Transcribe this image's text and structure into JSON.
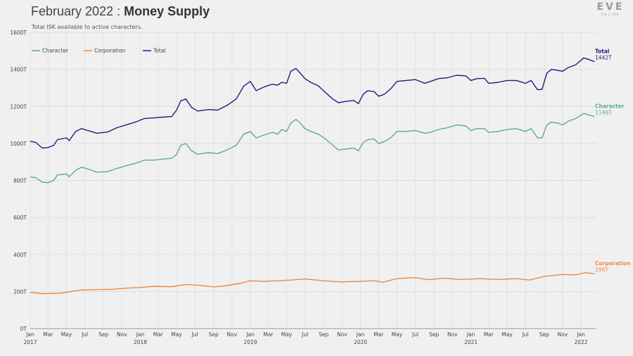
{
  "header": {
    "title_prefix": "February 2022 : ",
    "title_strong": "Money Supply",
    "subtitle": "Total ISK available to active characters.",
    "logo_text": "EVE",
    "logo_sub": "ONLINE"
  },
  "chart_data": {
    "type": "line",
    "ylim": [
      0,
      1600
    ],
    "y_ticks": [
      0,
      200,
      400,
      600,
      800,
      1000,
      1200,
      1400,
      1600
    ],
    "y_tick_labels": [
      "0T",
      "200T",
      "400T",
      "600T",
      "800T",
      "1000T",
      "1200T",
      "1400T",
      "1600T"
    ],
    "x_range": [
      "2017-01-01",
      "2022-02-28"
    ],
    "x_month_labels": [
      "Jan",
      "Mar",
      "May",
      "Jul",
      "Sep",
      "Nov",
      "Jan",
      "Mar",
      "May",
      "Jul",
      "Sep",
      "Nov",
      "Jan",
      "Mar",
      "May",
      "Jul",
      "Sep",
      "Nov",
      "Jan",
      "Mar",
      "May",
      "Jul",
      "Sep",
      "Nov",
      "Jan",
      "Mar",
      "May",
      "Jul",
      "Sep",
      "Nov",
      "Jan"
    ],
    "x_year_labels": [
      "2017",
      "2018",
      "2019",
      "2020",
      "2021",
      "2022"
    ],
    "legend": {
      "placement": "top-left"
    },
    "grid": true,
    "series": [
      {
        "name": "Character",
        "color": "#5fa898",
        "end_label": "Character",
        "end_value_label": "1146T",
        "points": [
          [
            "2017-01-01",
            820
          ],
          [
            "2017-01-20",
            815
          ],
          [
            "2017-02-10",
            790
          ],
          [
            "2017-03-01",
            788
          ],
          [
            "2017-03-20",
            800
          ],
          [
            "2017-04-01",
            830
          ],
          [
            "2017-05-01",
            835
          ],
          [
            "2017-05-10",
            820
          ],
          [
            "2017-06-01",
            855
          ],
          [
            "2017-06-20",
            872
          ],
          [
            "2017-07-15",
            860
          ],
          [
            "2017-08-10",
            845
          ],
          [
            "2017-09-15",
            848
          ],
          [
            "2017-10-15",
            865
          ],
          [
            "2017-11-15",
            880
          ],
          [
            "2017-12-15",
            892
          ],
          [
            "2018-01-15",
            910
          ],
          [
            "2018-02-15",
            910
          ],
          [
            "2018-03-15",
            915
          ],
          [
            "2018-04-15",
            920
          ],
          [
            "2018-05-01",
            940
          ],
          [
            "2018-05-15",
            990
          ],
          [
            "2018-06-01",
            1000
          ],
          [
            "2018-06-20",
            960
          ],
          [
            "2018-07-10",
            942
          ],
          [
            "2018-08-15",
            950
          ],
          [
            "2018-09-15",
            945
          ],
          [
            "2018-10-15",
            965
          ],
          [
            "2018-11-15",
            990
          ],
          [
            "2018-12-10",
            1050
          ],
          [
            "2019-01-01",
            1065
          ],
          [
            "2019-01-20",
            1030
          ],
          [
            "2019-02-15",
            1045
          ],
          [
            "2019-03-15",
            1060
          ],
          [
            "2019-04-01",
            1050
          ],
          [
            "2019-04-15",
            1075
          ],
          [
            "2019-05-01",
            1065
          ],
          [
            "2019-05-15",
            1110
          ],
          [
            "2019-06-01",
            1130
          ],
          [
            "2019-06-15",
            1110
          ],
          [
            "2019-07-01",
            1080
          ],
          [
            "2019-07-20",
            1065
          ],
          [
            "2019-08-15",
            1050
          ],
          [
            "2019-09-10",
            1020
          ],
          [
            "2019-10-01",
            990
          ],
          [
            "2019-10-20",
            965
          ],
          [
            "2019-11-15",
            970
          ],
          [
            "2019-12-10",
            975
          ],
          [
            "2019-12-25",
            960
          ],
          [
            "2020-01-10",
            1005
          ],
          [
            "2020-01-25",
            1020
          ],
          [
            "2020-02-15",
            1025
          ],
          [
            "2020-03-01",
            1000
          ],
          [
            "2020-03-20",
            1010
          ],
          [
            "2020-04-10",
            1030
          ],
          [
            "2020-05-01",
            1065
          ],
          [
            "2020-06-01",
            1065
          ],
          [
            "2020-07-01",
            1070
          ],
          [
            "2020-08-01",
            1055
          ],
          [
            "2020-08-20",
            1060
          ],
          [
            "2020-09-15",
            1075
          ],
          [
            "2020-10-15",
            1085
          ],
          [
            "2020-11-15",
            1100
          ],
          [
            "2020-12-15",
            1095
          ],
          [
            "2021-01-01",
            1070
          ],
          [
            "2021-01-20",
            1080
          ],
          [
            "2021-02-15",
            1080
          ],
          [
            "2021-03-01",
            1060
          ],
          [
            "2021-04-01",
            1065
          ],
          [
            "2021-05-01",
            1075
          ],
          [
            "2021-06-01",
            1080
          ],
          [
            "2021-07-01",
            1065
          ],
          [
            "2021-07-20",
            1080
          ],
          [
            "2021-08-10",
            1030
          ],
          [
            "2021-08-25",
            1030
          ],
          [
            "2021-09-10",
            1100
          ],
          [
            "2021-09-25",
            1115
          ],
          [
            "2021-10-15",
            1110
          ],
          [
            "2021-11-01",
            1100
          ],
          [
            "2021-11-20",
            1120
          ],
          [
            "2021-12-15",
            1135
          ],
          [
            "2022-01-10",
            1162
          ],
          [
            "2022-01-25",
            1155
          ],
          [
            "2022-02-15",
            1146
          ]
        ]
      },
      {
        "name": "Corporation",
        "color": "#f08a3c",
        "end_label": "Corporation",
        "end_value_label": "296T",
        "points": [
          [
            "2017-01-01",
            195
          ],
          [
            "2017-02-15",
            188
          ],
          [
            "2017-03-15",
            190
          ],
          [
            "2017-04-15",
            192
          ],
          [
            "2017-05-15",
            200
          ],
          [
            "2017-06-15",
            208
          ],
          [
            "2017-08-01",
            210
          ],
          [
            "2017-10-01",
            212
          ],
          [
            "2017-11-15",
            218
          ],
          [
            "2018-01-01",
            222
          ],
          [
            "2018-02-15",
            228
          ],
          [
            "2018-04-15",
            226
          ],
          [
            "2018-06-01",
            238
          ],
          [
            "2018-07-15",
            234
          ],
          [
            "2018-09-01",
            225
          ],
          [
            "2018-10-15",
            232
          ],
          [
            "2018-12-01",
            245
          ],
          [
            "2019-01-01",
            258
          ],
          [
            "2019-02-15",
            255
          ],
          [
            "2019-04-01",
            258
          ],
          [
            "2019-05-15",
            262
          ],
          [
            "2019-07-01",
            268
          ],
          [
            "2019-09-01",
            258
          ],
          [
            "2019-11-01",
            252
          ],
          [
            "2020-01-01",
            255
          ],
          [
            "2020-02-15",
            258
          ],
          [
            "2020-03-15",
            250
          ],
          [
            "2020-05-01",
            270
          ],
          [
            "2020-07-01",
            275
          ],
          [
            "2020-08-15",
            264
          ],
          [
            "2020-10-01",
            272
          ],
          [
            "2020-12-01",
            265
          ],
          [
            "2021-02-01",
            270
          ],
          [
            "2021-04-01",
            265
          ],
          [
            "2021-06-01",
            270
          ],
          [
            "2021-07-15",
            262
          ],
          [
            "2021-09-01",
            282
          ],
          [
            "2021-11-01",
            292
          ],
          [
            "2021-12-15",
            290
          ],
          [
            "2022-01-15",
            302
          ],
          [
            "2022-02-15",
            296
          ]
        ]
      },
      {
        "name": "Total",
        "color": "#1f1d80",
        "end_label": "Total",
        "end_value_label": "1442T",
        "points": [
          [
            "2017-01-01",
            1012
          ],
          [
            "2017-01-20",
            1005
          ],
          [
            "2017-02-10",
            975
          ],
          [
            "2017-03-01",
            978
          ],
          [
            "2017-03-20",
            990
          ],
          [
            "2017-04-01",
            1020
          ],
          [
            "2017-05-01",
            1030
          ],
          [
            "2017-05-10",
            1015
          ],
          [
            "2017-06-01",
            1065
          ],
          [
            "2017-06-20",
            1080
          ],
          [
            "2017-07-15",
            1068
          ],
          [
            "2017-08-10",
            1055
          ],
          [
            "2017-09-15",
            1062
          ],
          [
            "2017-10-15",
            1085
          ],
          [
            "2017-11-15",
            1100
          ],
          [
            "2017-12-15",
            1115
          ],
          [
            "2018-01-15",
            1135
          ],
          [
            "2018-02-15",
            1138
          ],
          [
            "2018-03-15",
            1142
          ],
          [
            "2018-04-15",
            1145
          ],
          [
            "2018-05-01",
            1180
          ],
          [
            "2018-05-15",
            1230
          ],
          [
            "2018-06-01",
            1240
          ],
          [
            "2018-06-20",
            1195
          ],
          [
            "2018-07-10",
            1175
          ],
          [
            "2018-08-15",
            1183
          ],
          [
            "2018-09-15",
            1180
          ],
          [
            "2018-10-15",
            1205
          ],
          [
            "2018-11-15",
            1240
          ],
          [
            "2018-12-10",
            1310
          ],
          [
            "2019-01-01",
            1335
          ],
          [
            "2019-01-20",
            1285
          ],
          [
            "2019-02-15",
            1305
          ],
          [
            "2019-03-15",
            1320
          ],
          [
            "2019-04-01",
            1315
          ],
          [
            "2019-04-15",
            1330
          ],
          [
            "2019-05-01",
            1325
          ],
          [
            "2019-05-15",
            1390
          ],
          [
            "2019-06-01",
            1405
          ],
          [
            "2019-06-15",
            1380
          ],
          [
            "2019-07-01",
            1350
          ],
          [
            "2019-07-20",
            1330
          ],
          [
            "2019-08-15",
            1310
          ],
          [
            "2019-09-10",
            1270
          ],
          [
            "2019-10-01",
            1240
          ],
          [
            "2019-10-20",
            1220
          ],
          [
            "2019-11-15",
            1228
          ],
          [
            "2019-12-10",
            1232
          ],
          [
            "2019-12-25",
            1215
          ],
          [
            "2020-01-10",
            1265
          ],
          [
            "2020-01-25",
            1285
          ],
          [
            "2020-02-15",
            1280
          ],
          [
            "2020-03-01",
            1255
          ],
          [
            "2020-03-20",
            1265
          ],
          [
            "2020-04-10",
            1295
          ],
          [
            "2020-05-01",
            1335
          ],
          [
            "2020-06-01",
            1340
          ],
          [
            "2020-07-01",
            1345
          ],
          [
            "2020-08-01",
            1325
          ],
          [
            "2020-08-20",
            1335
          ],
          [
            "2020-09-15",
            1350
          ],
          [
            "2020-10-15",
            1355
          ],
          [
            "2020-11-15",
            1368
          ],
          [
            "2020-12-15",
            1365
          ],
          [
            "2021-01-01",
            1340
          ],
          [
            "2021-01-20",
            1350
          ],
          [
            "2021-02-15",
            1352
          ],
          [
            "2021-03-01",
            1325
          ],
          [
            "2021-04-01",
            1330
          ],
          [
            "2021-05-01",
            1340
          ],
          [
            "2021-06-01",
            1340
          ],
          [
            "2021-07-01",
            1325
          ],
          [
            "2021-07-20",
            1340
          ],
          [
            "2021-08-10",
            1290
          ],
          [
            "2021-08-25",
            1292
          ],
          [
            "2021-09-10",
            1380
          ],
          [
            "2021-09-25",
            1400
          ],
          [
            "2021-10-15",
            1395
          ],
          [
            "2021-11-01",
            1390
          ],
          [
            "2021-11-20",
            1410
          ],
          [
            "2021-12-15",
            1425
          ],
          [
            "2022-01-10",
            1462
          ],
          [
            "2022-01-25",
            1455
          ],
          [
            "2022-02-15",
            1442
          ]
        ]
      }
    ]
  }
}
